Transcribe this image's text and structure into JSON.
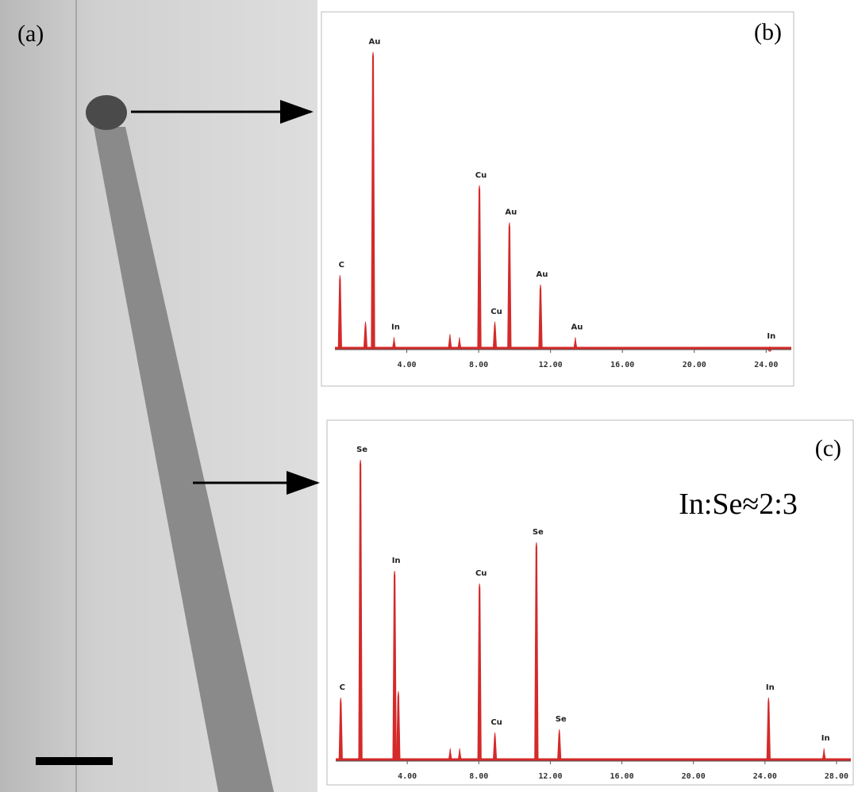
{
  "panel_a": {
    "label": "(a)"
  },
  "chart_data": [
    {
      "type": "spectrum",
      "panel_label": "(b)",
      "color": "#d42a2a",
      "xlim": [
        0,
        25.4
      ],
      "ylim": [
        0,
        100
      ],
      "xticks": [
        {
          "value": 4,
          "label": "4.00"
        },
        {
          "value": 8,
          "label": "8.00"
        },
        {
          "value": 12,
          "label": "12.00"
        },
        {
          "value": 16,
          "label": "16.00"
        },
        {
          "value": 20,
          "label": "20.00"
        },
        {
          "value": 24,
          "label": "24.00"
        }
      ],
      "peaks": [
        {
          "label": "C",
          "x": 0.28,
          "height": 24
        },
        {
          "label": null,
          "x": 1.7,
          "height": 9
        },
        {
          "label": "Au",
          "x": 2.12,
          "height": 96
        },
        {
          "label": "In",
          "x": 3.29,
          "height": 4
        },
        {
          "label": null,
          "x": 6.4,
          "height": 5
        },
        {
          "label": null,
          "x": 6.93,
          "height": 4
        },
        {
          "label": "Cu",
          "x": 8.04,
          "height": 53
        },
        {
          "label": "Cu",
          "x": 8.9,
          "height": 9
        },
        {
          "label": "Au",
          "x": 9.71,
          "height": 41
        },
        {
          "label": "Au",
          "x": 11.44,
          "height": 21
        },
        {
          "label": "Au",
          "x": 13.38,
          "height": 4
        },
        {
          "label": "In",
          "x": 24.2,
          "height": 1
        }
      ]
    },
    {
      "type": "spectrum",
      "panel_label": "(c)",
      "annotation": "In:Se≈2:3",
      "color": "#d42a2a",
      "xlim": [
        0,
        28.8
      ],
      "ylim": [
        0,
        100
      ],
      "xticks": [
        {
          "value": 4,
          "label": "4.00"
        },
        {
          "value": 8,
          "label": "8.00"
        },
        {
          "value": 12,
          "label": "12.00"
        },
        {
          "value": 16,
          "label": "16.00"
        },
        {
          "value": 20,
          "label": "20.00"
        },
        {
          "value": 24,
          "label": "24.00"
        },
        {
          "value": 28,
          "label": "28.00"
        }
      ],
      "peaks": [
        {
          "label": "C",
          "x": 0.28,
          "height": 20
        },
        {
          "label": "Se",
          "x": 1.38,
          "height": 95
        },
        {
          "label": "In",
          "x": 3.29,
          "height": 60
        },
        {
          "label": null,
          "x": 3.5,
          "height": 22
        },
        {
          "label": null,
          "x": 6.4,
          "height": 4
        },
        {
          "label": null,
          "x": 6.93,
          "height": 4
        },
        {
          "label": "Cu",
          "x": 8.04,
          "height": 56
        },
        {
          "label": "Cu",
          "x": 8.9,
          "height": 9
        },
        {
          "label": "Se",
          "x": 11.22,
          "height": 69
        },
        {
          "label": "Se",
          "x": 12.5,
          "height": 10
        },
        {
          "label": "In",
          "x": 24.2,
          "height": 20
        },
        {
          "label": "In",
          "x": 27.3,
          "height": 4
        }
      ]
    }
  ]
}
